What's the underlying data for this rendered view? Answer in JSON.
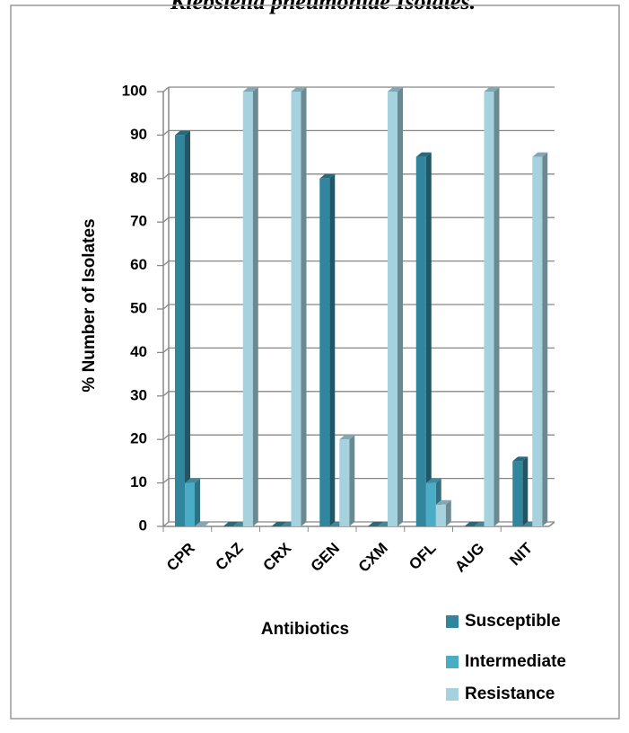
{
  "chart_data": {
    "type": "bar",
    "title": "Klebsiella pneumoniae Isolates.",
    "x_label": "Antibiotics",
    "y_label": "% Number of Isolates",
    "categories": [
      "CPR",
      "CAZ",
      "CRX",
      "GEN",
      "CXM",
      "OFL",
      "AUG",
      "NIT"
    ],
    "series": [
      {
        "name": "Susceptible",
        "color": "#31859c",
        "values": [
          90,
          0,
          0,
          80,
          0,
          85,
          0,
          15
        ]
      },
      {
        "name": "Intermediate",
        "color": "#4bacc6",
        "values": [
          10,
          0,
          0,
          0,
          0,
          10,
          0,
          0
        ]
      },
      {
        "name": "Resistance",
        "color": "#a5d2de",
        "values": [
          0,
          100,
          100,
          20,
          100,
          5,
          100,
          85
        ]
      }
    ],
    "ylim": [
      0,
      100
    ],
    "yticks": [
      0,
      10,
      20,
      30,
      40,
      50,
      60,
      70,
      80,
      90,
      100
    ],
    "grid": true,
    "legend": "bottom-right"
  }
}
